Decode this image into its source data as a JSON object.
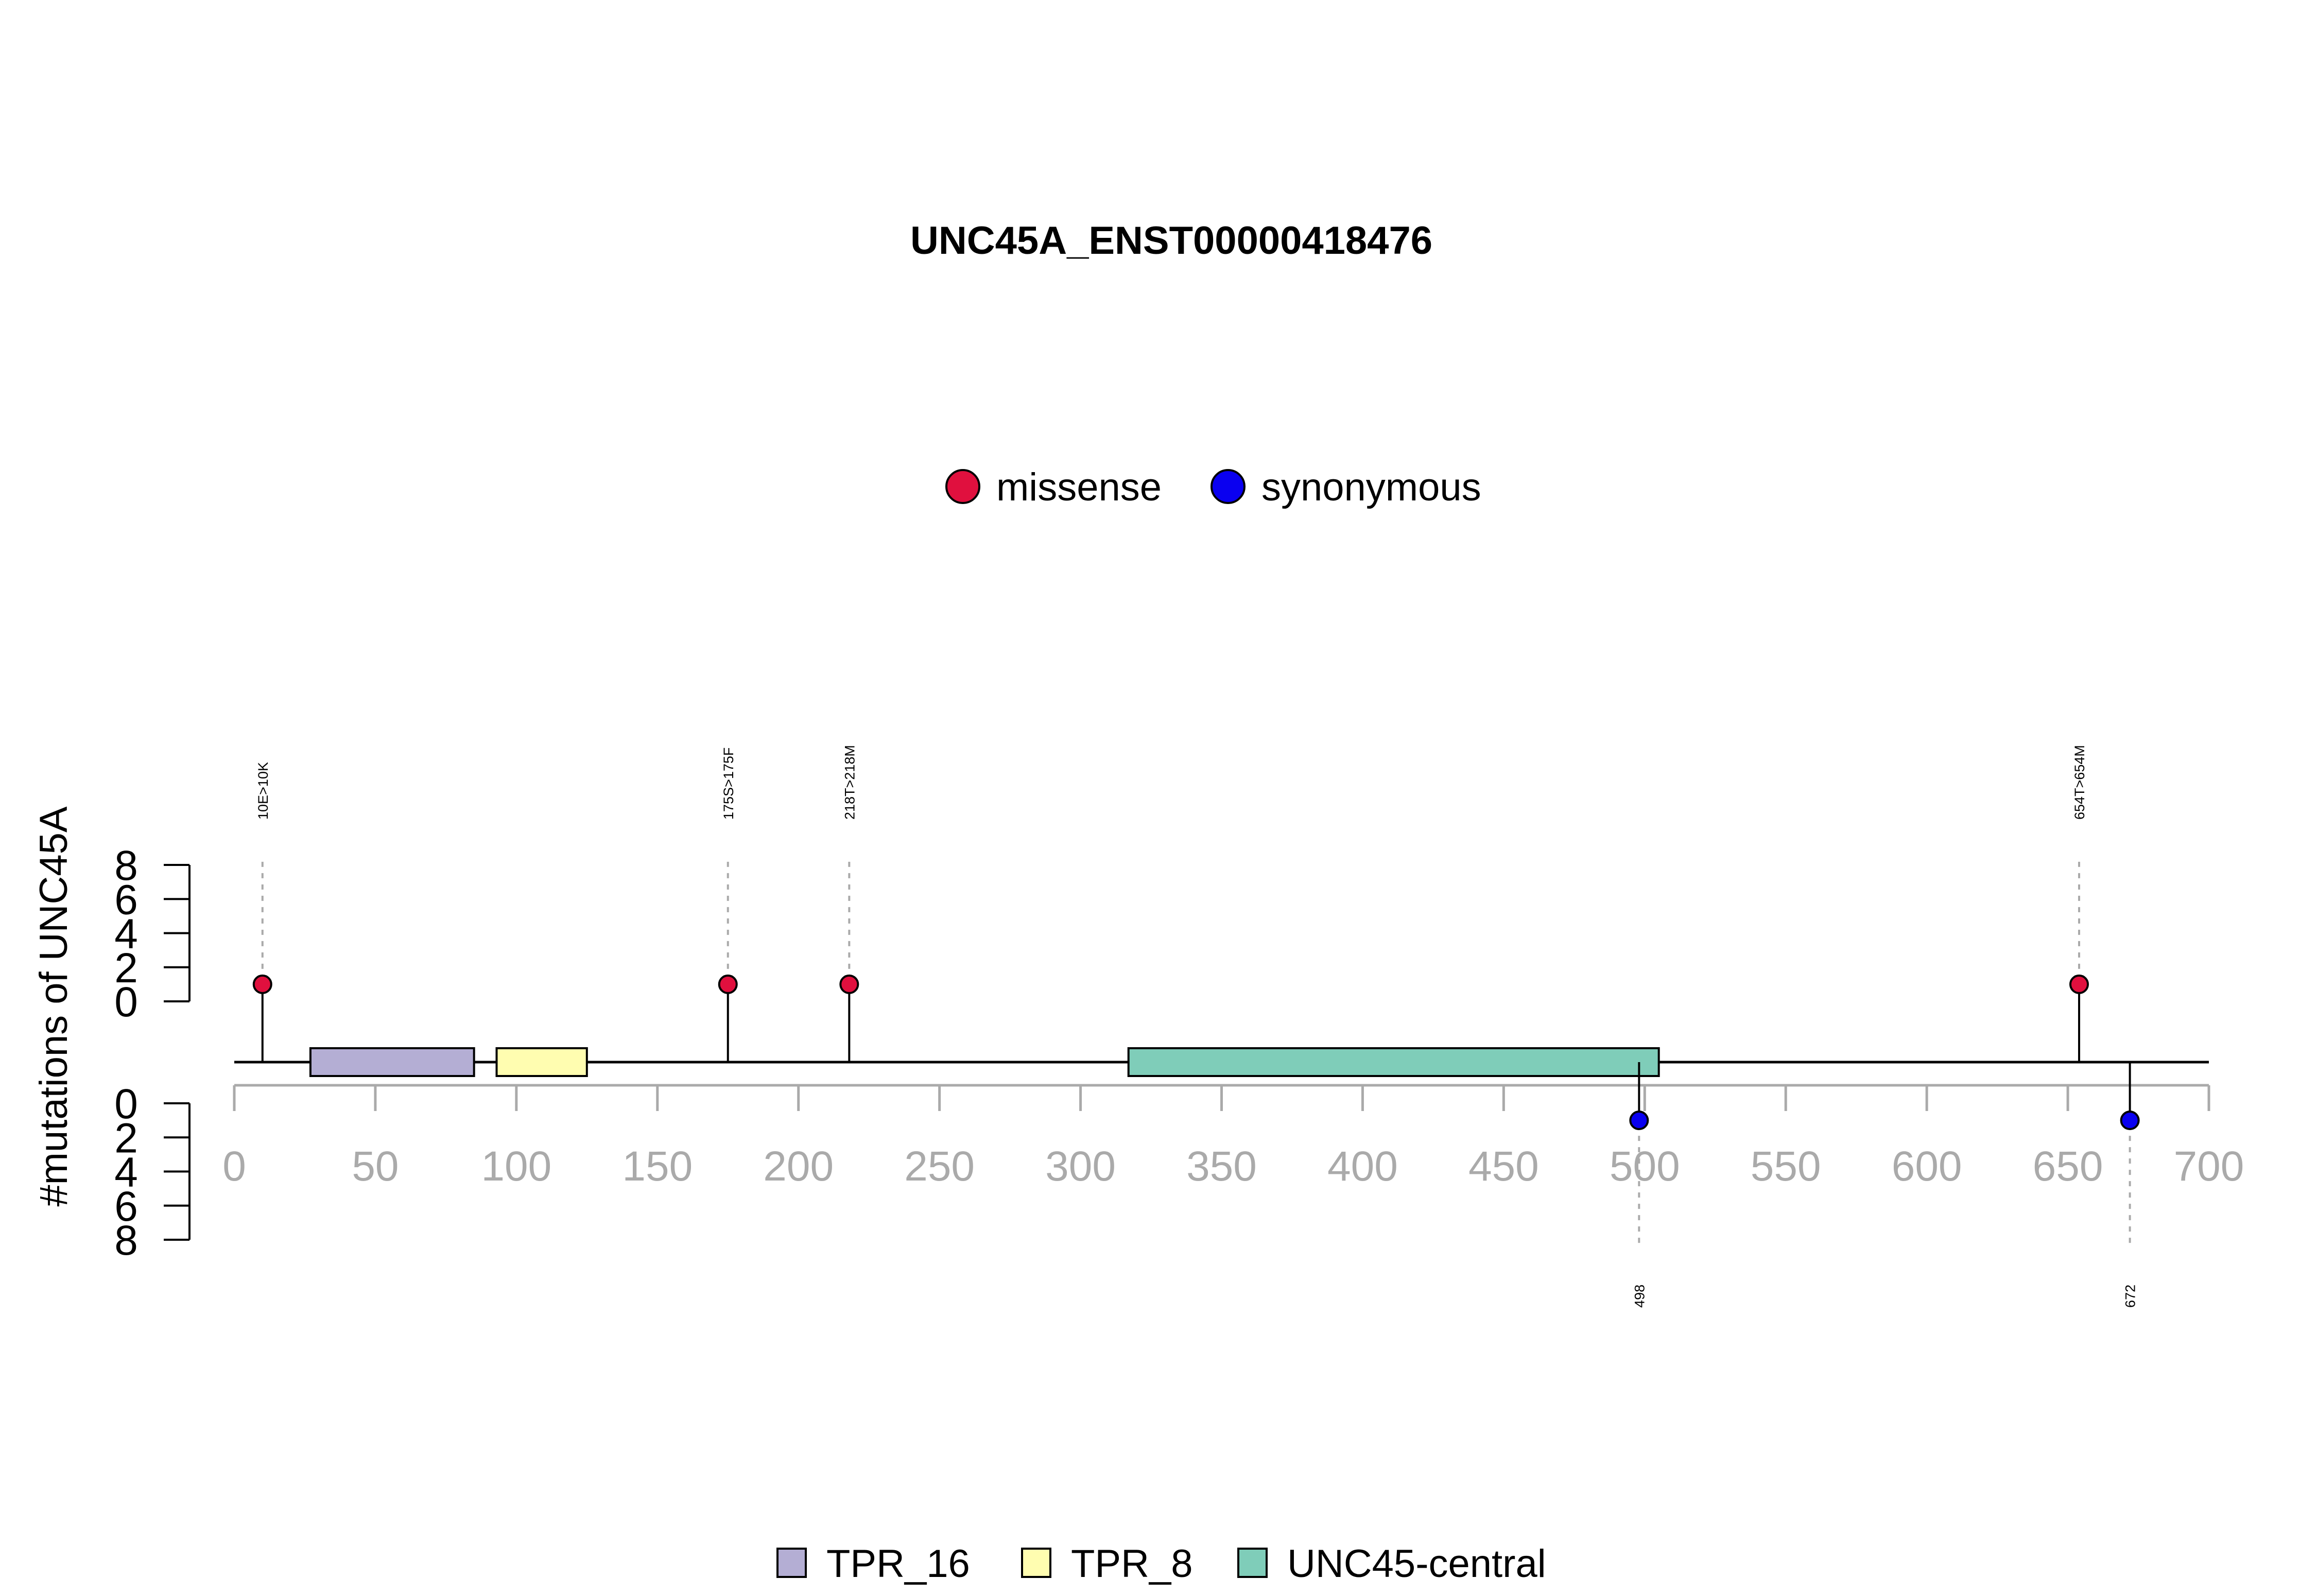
{
  "chart_data": {
    "type": "lollipop",
    "title": "UNC45A_ENST00000418476",
    "ylabel": "#mutations of UNC45A",
    "xlim": [
      0,
      700
    ],
    "x_ticks": [
      0,
      50,
      100,
      150,
      200,
      250,
      300,
      350,
      400,
      450,
      500,
      550,
      600,
      650,
      700
    ],
    "protein_length": 700,
    "y_axis_top": {
      "range": [
        0,
        8
      ],
      "ticks": [
        0,
        2,
        4,
        6,
        8
      ]
    },
    "y_axis_bottom": {
      "range": [
        0,
        8
      ],
      "ticks": [
        0,
        2,
        4,
        6,
        8
      ]
    },
    "mutation_legend": [
      {
        "name": "missense",
        "color": "#E0103E"
      },
      {
        "name": "synonymous",
        "color": "#0A00F0"
      }
    ],
    "domains": [
      {
        "name": "TPR_16",
        "start": 27,
        "end": 85,
        "color": "#B4AED4"
      },
      {
        "name": "TPR_8",
        "start": 93,
        "end": 125,
        "color": "#FFFDB0"
      },
      {
        "name": "UNC45-central",
        "start": 317,
        "end": 505,
        "color": "#7FCDB9"
      }
    ],
    "mutations_top": [
      {
        "position": 10,
        "count": 1,
        "type": "missense",
        "label": "10E>10K"
      },
      {
        "position": 175,
        "count": 1,
        "type": "missense",
        "label": "175S>175F"
      },
      {
        "position": 218,
        "count": 1,
        "type": "missense",
        "label": "218T>218M"
      },
      {
        "position": 654,
        "count": 1,
        "type": "missense",
        "label": "654T>654M"
      }
    ],
    "mutations_bottom": [
      {
        "position": 498,
        "count": 1,
        "type": "synonymous",
        "label": "498"
      },
      {
        "position": 672,
        "count": 1,
        "type": "synonymous",
        "label": "672"
      }
    ]
  }
}
